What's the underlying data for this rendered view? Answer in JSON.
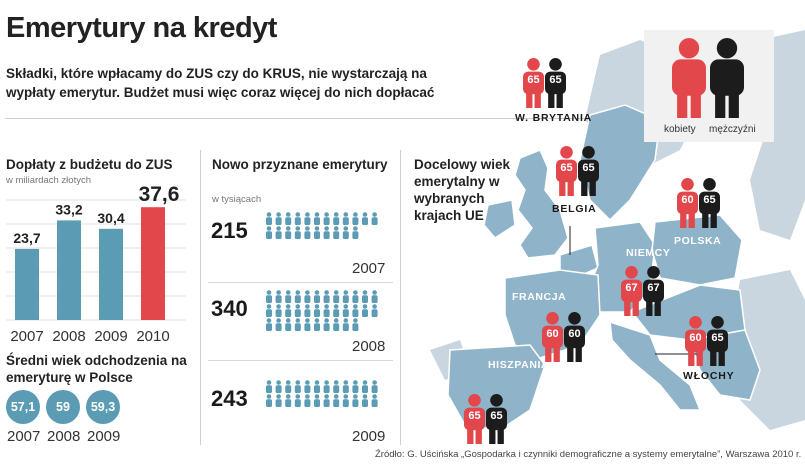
{
  "header": {
    "title": "Emerytury na kredyt",
    "subtitle": "Składki, które wpłacamy do ZUS czy do KRUS, nie wystarczają na wypłaty emerytur. Budżet musi więc coraz więcej do nich dopłacać"
  },
  "colors": {
    "bar": "#5b9bb4",
    "bar_highlight": "#e2474b",
    "person": "#5b9bb4",
    "woman": "#e2474b",
    "man": "#1c1c1c",
    "map": "#8fb3c9"
  },
  "chart_data": [
    {
      "type": "bar",
      "title": "Dopłaty z budżetu do ZUS",
      "subtitle": "w miliardach złotych",
      "categories": [
        "2007",
        "2008",
        "2009",
        "2010"
      ],
      "values": [
        23.7,
        33.2,
        30.4,
        37.6
      ],
      "value_labels": [
        "23,7",
        "33,2",
        "30,4",
        "37,6"
      ],
      "highlight_index": 3,
      "ylim": [
        0,
        40
      ]
    },
    {
      "type": "pictogram",
      "title": "Nowo przyznane emerytury",
      "subtitle": "w tysiącach",
      "rows": [
        {
          "year": "2007",
          "value": 215,
          "label": "215"
        },
        {
          "year": "2008",
          "value": 340,
          "label": "340"
        },
        {
          "year": "2009",
          "value": 243,
          "label": "243"
        }
      ]
    },
    {
      "type": "circles",
      "title": "Średni wiek odchodzenia na emeryturę w Polsce",
      "categories": [
        "2007",
        "2008",
        "2009"
      ],
      "values": [
        57.1,
        59,
        59.3
      ],
      "value_labels": [
        "57,1",
        "59",
        "59,3"
      ]
    },
    {
      "type": "map",
      "title": "Docelowy wiek emerytalny w wybranych krajach UE",
      "legend": {
        "women": "kobiety",
        "men": "mężczyźni"
      },
      "countries": [
        {
          "name": "W. BRYTANIA",
          "women": 65,
          "men": 65
        },
        {
          "name": "BELGIA",
          "women": 65,
          "men": 65
        },
        {
          "name": "POLSKA",
          "women": 60,
          "men": 65
        },
        {
          "name": "NIEMCY",
          "women": 67,
          "men": 67
        },
        {
          "name": "FRANCJA",
          "women": 60,
          "men": 60
        },
        {
          "name": "WŁOCHY",
          "women": 60,
          "men": 65
        },
        {
          "name": "HISZPANIA",
          "women": 65,
          "men": 65
        }
      ]
    }
  ],
  "source": "Źródło: G. Uścińska „Gospodarka i czynniki demograficzne a systemy emerytalne”, Warszawa 2010 r."
}
